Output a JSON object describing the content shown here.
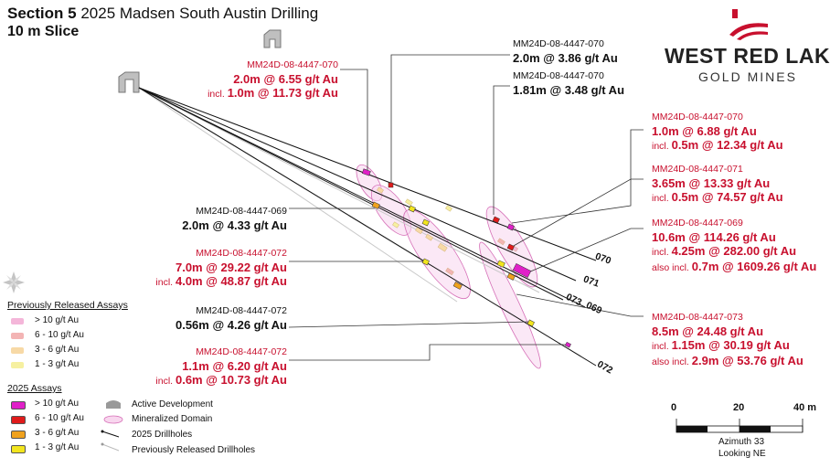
{
  "header": {
    "section": "Section 5",
    "title": "2025 Madsen South Austin Drilling",
    "slice": "10 m Slice"
  },
  "logo": {
    "line1": "WEST RED LAKE",
    "line2": "GOLD MINES",
    "accent_color": "#c8102e"
  },
  "labels": [
    {
      "id": "l1",
      "hole": "MM24D-08-4447-070",
      "color": "red",
      "lines": [
        {
          "prefix": "",
          "text": "2.0m @ 6.55 g/t Au"
        },
        {
          "prefix": "incl. ",
          "text": "1.0m @ 11.73 g/t Au"
        }
      ]
    },
    {
      "id": "l2",
      "hole": "MM24D-08-4447-070",
      "color": "black",
      "lines": [
        {
          "prefix": "",
          "text": "2.0m @ 3.86 g/t Au"
        }
      ]
    },
    {
      "id": "l3",
      "hole": "MM24D-08-4447-070",
      "color": "black",
      "lines": [
        {
          "prefix": "",
          "text": "1.81m @ 3.48 g/t Au"
        }
      ]
    },
    {
      "id": "l4",
      "hole": "MM24D-08-4447-070",
      "color": "red",
      "lines": [
        {
          "prefix": "",
          "text": "1.0m @ 6.88 g/t Au"
        },
        {
          "prefix": "incl. ",
          "text": "0.5m @ 12.34 g/t Au"
        }
      ]
    },
    {
      "id": "l5",
      "hole": "MM24D-08-4447-071",
      "color": "red",
      "lines": [
        {
          "prefix": "",
          "text": "3.65m @ 13.33 g/t Au"
        },
        {
          "prefix": "incl. ",
          "text": "0.5m @ 74.57 g/t Au"
        }
      ]
    },
    {
      "id": "l6",
      "hole": "MM24D-08-4447-069",
      "color": "black",
      "lines": [
        {
          "prefix": "",
          "text": "2.0m @ 4.33 g/t Au"
        }
      ]
    },
    {
      "id": "l7",
      "hole": "MM24D-08-4447-069",
      "color": "red",
      "lines": [
        {
          "prefix": "",
          "text": "10.6m @ 114.26 g/t Au"
        },
        {
          "prefix": "incl. ",
          "text": "4.25m @ 282.00 g/t Au"
        },
        {
          "prefix": "also incl. ",
          "text": "0.7m @ 1609.26 g/t Au"
        }
      ]
    },
    {
      "id": "l8",
      "hole": "MM24D-08-4447-072",
      "color": "red",
      "lines": [
        {
          "prefix": "",
          "text": "7.0m @ 29.22 g/t Au"
        },
        {
          "prefix": "incl. ",
          "text": "4.0m @ 48.87 g/t Au"
        }
      ]
    },
    {
      "id": "l9",
      "hole": "MM24D-08-4447-072",
      "color": "black",
      "lines": [
        {
          "prefix": "",
          "text": "0.56m @ 4.26 g/t Au"
        }
      ]
    },
    {
      "id": "l10",
      "hole": "MM24D-08-4447-073",
      "color": "red",
      "lines": [
        {
          "prefix": "",
          "text": "8.5m @ 24.48 g/t Au"
        },
        {
          "prefix": "incl. ",
          "text": "1.15m @ 30.19 g/t Au"
        },
        {
          "prefix": "also incl. ",
          "text": "2.9m @ 53.76 g/t Au"
        }
      ]
    },
    {
      "id": "l11",
      "hole": "MM24D-08-4447-072",
      "color": "red",
      "lines": [
        {
          "prefix": "",
          "text": "1.1m @ 6.20 g/t Au"
        },
        {
          "prefix": "incl. ",
          "text": "0.6m @ 10.73 g/t Au"
        }
      ]
    }
  ],
  "hole_ends": [
    "070",
    "071",
    "073",
    "069",
    "072"
  ],
  "legend": {
    "previous_title": "Previously Released Assays",
    "previous": [
      {
        "label": "> 10 g/t Au",
        "color": "#f4b6d9"
      },
      {
        "label": "6 - 10 g/t Au",
        "color": "#f3b4b4"
      },
      {
        "label": "3 - 6 g/t Au",
        "color": "#f7d9a6"
      },
      {
        "label": "1 - 3 g/t Au",
        "color": "#f6f0a0"
      }
    ],
    "current_title": "2025 Assays",
    "current": [
      {
        "label": "> 10 g/t Au",
        "color": "#e020c8"
      },
      {
        "label": "6 - 10 g/t Au",
        "color": "#e01b1b"
      },
      {
        "label": "3 - 6 g/t Au",
        "color": "#f0a21e"
      },
      {
        "label": "1 - 3 g/t Au",
        "color": "#f2e51e"
      }
    ],
    "symbols": [
      {
        "label": "Active Development",
        "icon": "dev-shape-icon"
      },
      {
        "label": "Mineralized Domain",
        "icon": "domain-ellipse-icon"
      },
      {
        "label": "2025 Drillholes",
        "icon": "drillhole-line-icon"
      },
      {
        "label": "Previously Released Drillholes",
        "icon": "old-drillhole-line-icon"
      }
    ]
  },
  "scale": {
    "ticks": [
      "0",
      "20",
      "40 m"
    ],
    "azimuth": "Azimuth 33",
    "looking": "Looking NE"
  },
  "north_icon": "compass-rose-icon"
}
